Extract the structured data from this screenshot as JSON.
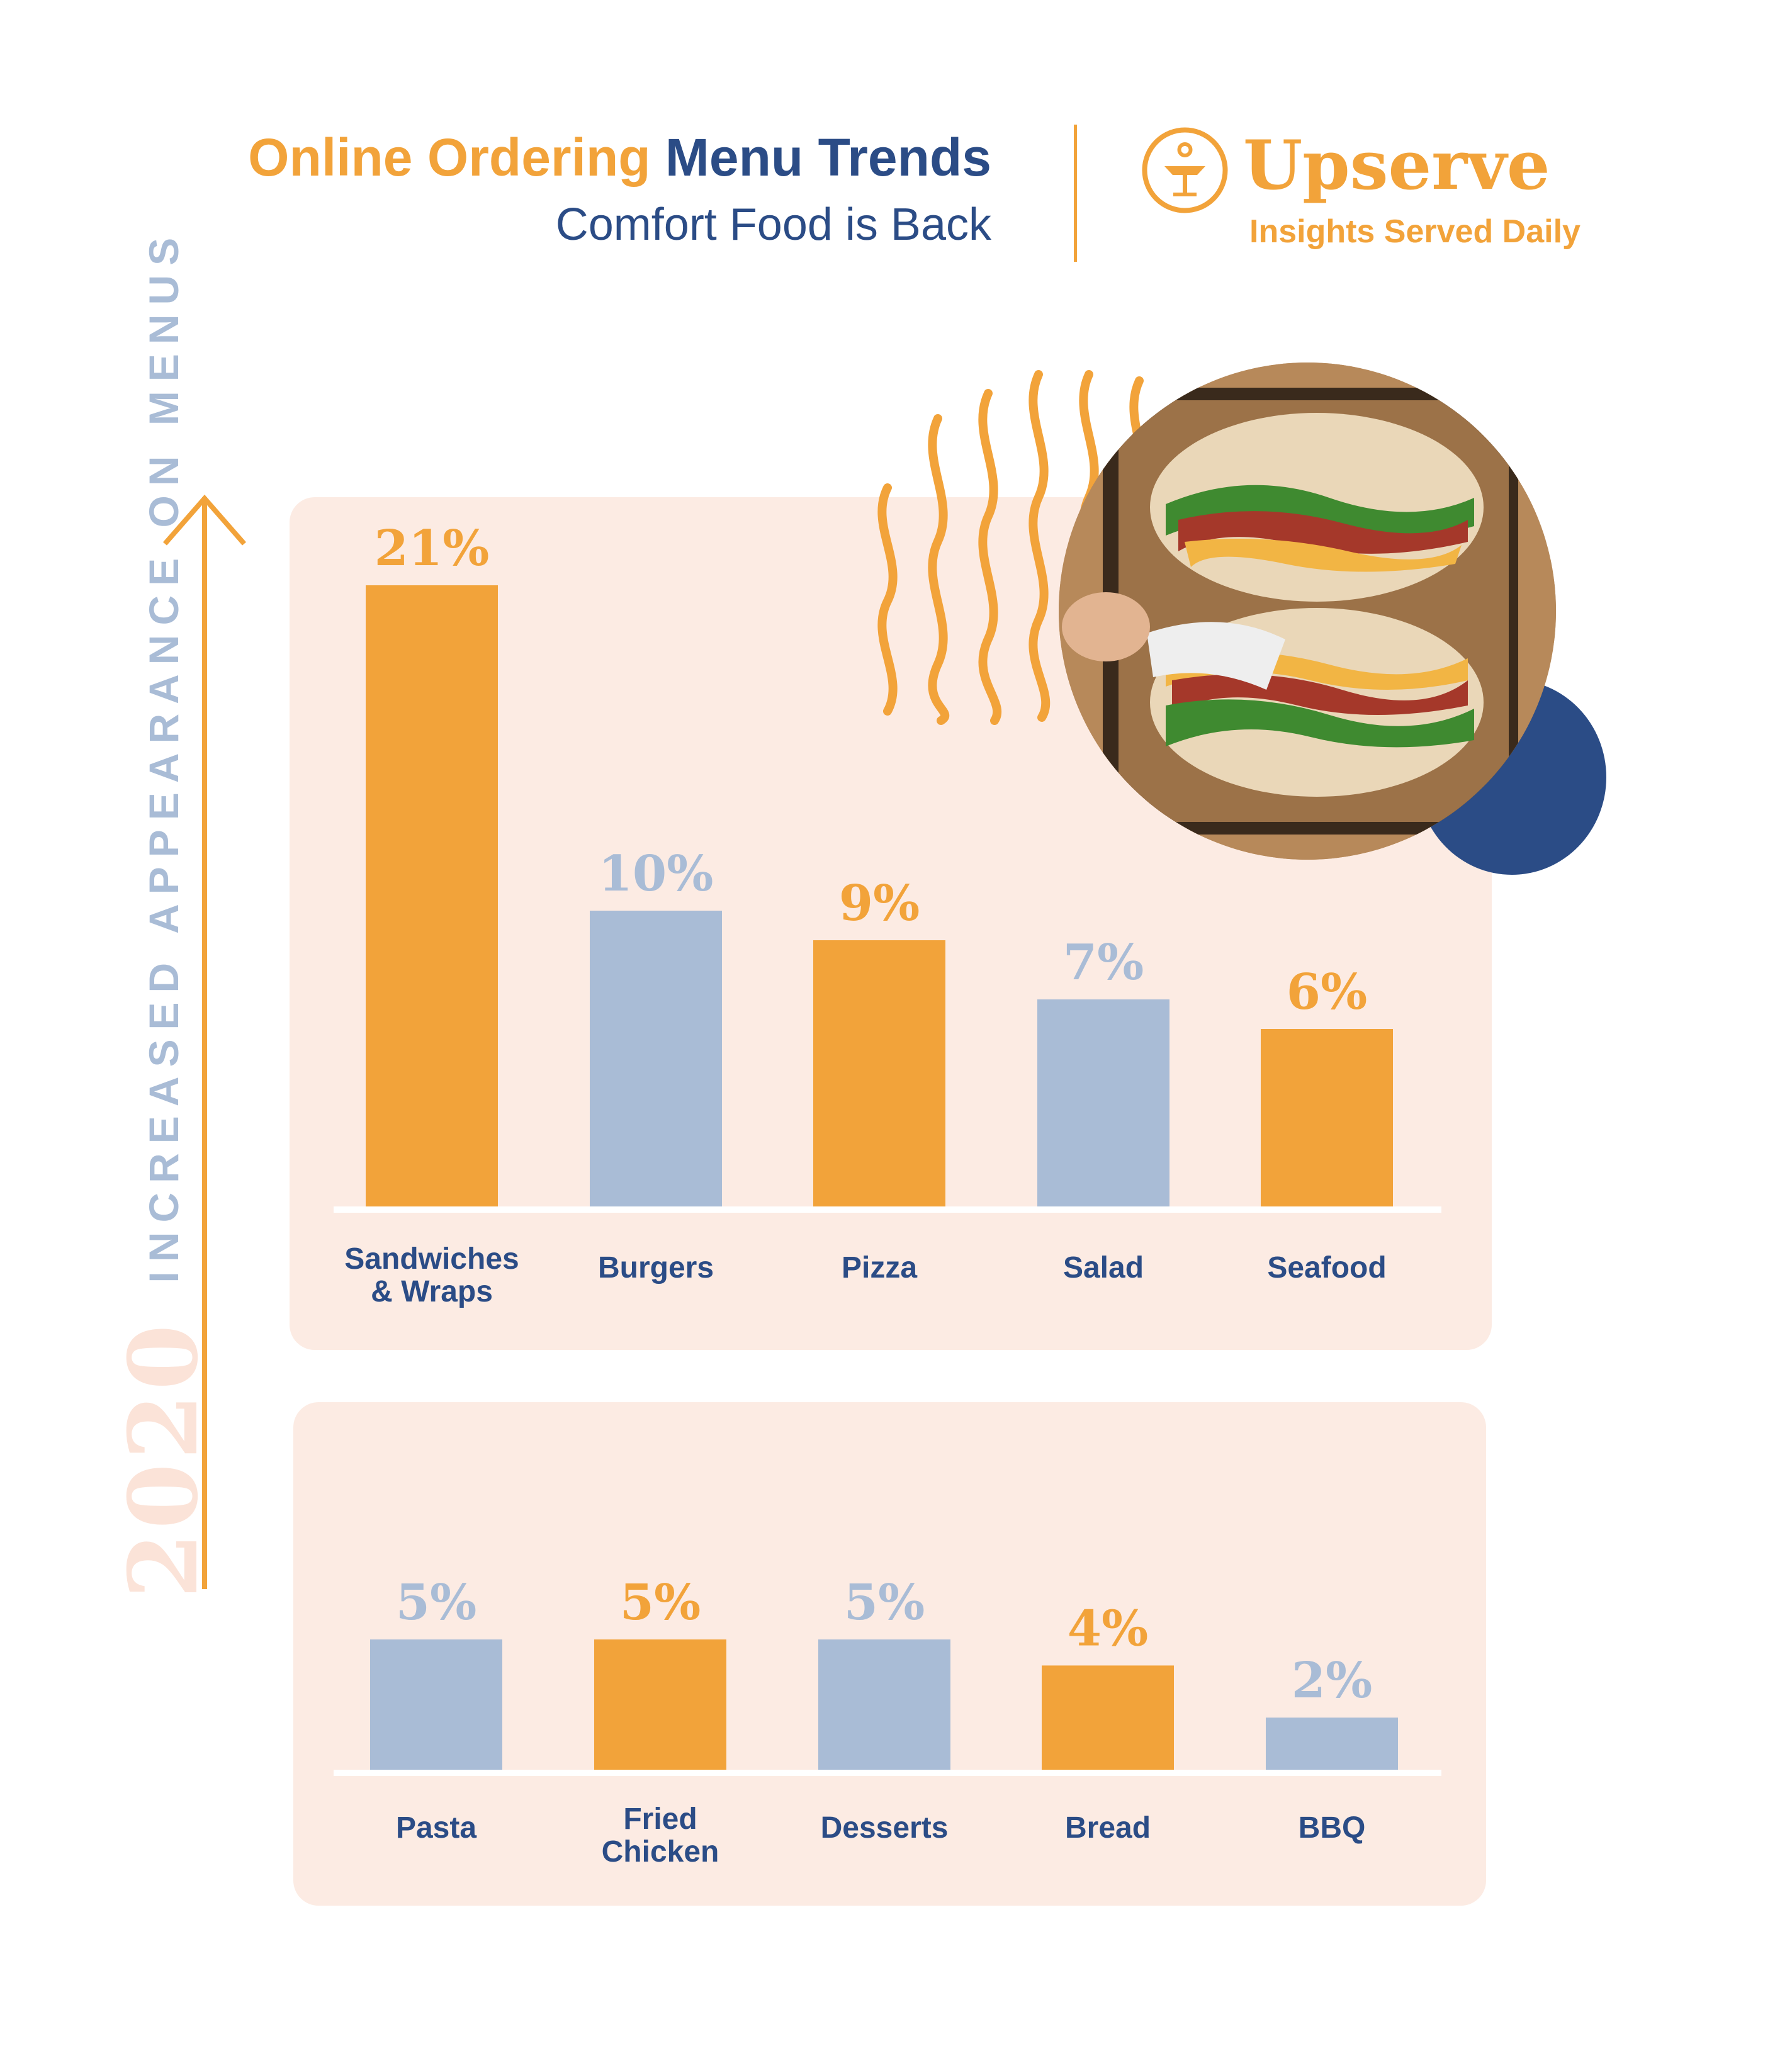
{
  "header": {
    "title_part1": "Online Ordering",
    "title_part2": "Menu Trends",
    "subtitle": "Comfort Food is Back"
  },
  "brand": {
    "name": "Upserve",
    "tagline": "Insights Served Daily"
  },
  "axis": {
    "year": "2020",
    "label": "INCREASED APPEARANCE ON MENUS"
  },
  "colors": {
    "orange": "#f2a33a",
    "blue_gray": "#a9bcd6",
    "navy": "#2b4c86",
    "panel_bg": "#fcebe3"
  },
  "chart_data": [
    {
      "type": "bar",
      "categories": [
        "Sandwiches & Wraps",
        "Burgers",
        "Pizza",
        "Salad",
        "Seafood"
      ],
      "values": [
        21,
        10,
        9,
        7,
        6
      ],
      "value_labels": [
        "21%",
        "10%",
        "9%",
        "7%",
        "6%"
      ],
      "bar_colors": [
        "#f2a33a",
        "#a9bcd6",
        "#f2a33a",
        "#a9bcd6",
        "#f2a33a"
      ],
      "title": "",
      "xlabel": "",
      "ylabel": "INCREASED APPEARANCE ON MENUS",
      "grid": false
    },
    {
      "type": "bar",
      "categories": [
        "Pasta",
        "Fried Chicken",
        "Desserts",
        "Bread",
        "BBQ"
      ],
      "values": [
        5,
        5,
        5,
        4,
        2
      ],
      "value_labels": [
        "5%",
        "5%",
        "5%",
        "4%",
        "2%"
      ],
      "bar_colors": [
        "#a9bcd6",
        "#f2a33a",
        "#a9bcd6",
        "#f2a33a",
        "#a9bcd6"
      ],
      "title": "",
      "xlabel": "",
      "ylabel": "INCREASED APPEARANCE ON MENUS",
      "grid": false
    }
  ]
}
